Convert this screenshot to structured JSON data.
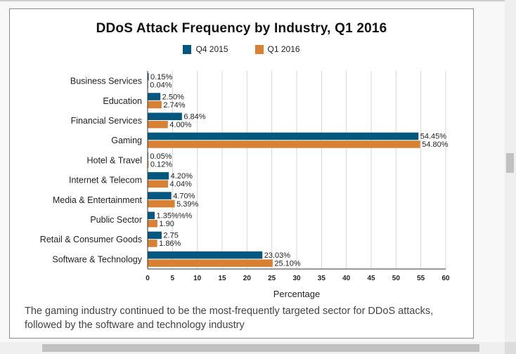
{
  "caption": "The gaming industry continued to be the most-frequently targeted sector for DDoS attacks, followed by the software and technology industry",
  "chart_data": {
    "type": "bar",
    "orientation": "horizontal",
    "title": "DDoS Attack Frequency by Industry, Q1 2016",
    "xlabel": "Percentage",
    "ylabel": "",
    "xlim": [
      0,
      60
    ],
    "xticks": [
      0,
      5,
      10,
      15,
      20,
      25,
      30,
      35,
      40,
      45,
      50,
      55,
      60
    ],
    "grid": true,
    "legend_position": "top-center",
    "categories": [
      "Business Services",
      "Education",
      "Financial Services",
      "Gaming",
      "Hotel & Travel",
      "Internet & Telecom",
      "Media & Entertainment",
      "Public Sector",
      "Retail & Consumer Goods",
      "Software & Technology"
    ],
    "series": [
      {
        "name": "Q4 2015",
        "color": "#04577E",
        "values": [
          0.15,
          2.5,
          6.84,
          54.45,
          0.05,
          4.2,
          4.7,
          1.35,
          2.75,
          23.03
        ],
        "labels": [
          "0.15%",
          "2.50%",
          "6.84%",
          "54.45%",
          "0.05%",
          "4.20%",
          "4.70%",
          "1.35%%%",
          "2.75",
          "23.03%"
        ]
      },
      {
        "name": "Q1 2016",
        "color": "#D98132",
        "values": [
          0.04,
          2.74,
          4.0,
          54.8,
          0.12,
          4.04,
          5.39,
          1.9,
          1.86,
          25.1
        ],
        "labels": [
          "0.04%",
          "2.74%",
          "4.00%",
          "54.80%",
          "0.12%",
          "4.04%",
          "5.39%",
          "1.90",
          "1.86%",
          "25.10%"
        ]
      }
    ]
  }
}
